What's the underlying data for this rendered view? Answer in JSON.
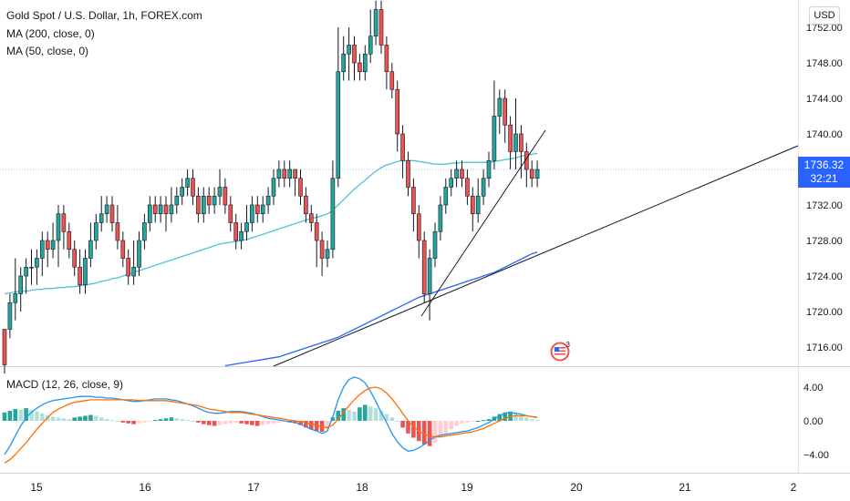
{
  "title": "Gold Spot / U.S. Dollar, 1h, FOREX.com",
  "indicators": [
    "MA (200, close, 0)",
    "MA (50, close, 0)"
  ],
  "currency": "USD",
  "last_price": "1736.32",
  "countdown": "32:21",
  "event_count": "3",
  "macd_label": "MACD (12, 26, close, 9)",
  "colors": {
    "up": "#26a69a",
    "down": "#ef5350",
    "ma50": "#4dc3d8",
    "ma200": "#2962ff",
    "macd": "#2196f3",
    "signal": "#ff6d00",
    "hist_up_strong": "#26a69a",
    "hist_up_weak": "#b2dfdb",
    "hist_down_strong": "#ef5350",
    "hist_down_weak": "#ffcdd2",
    "price_tag": "#2962ff"
  },
  "chart_data": [
    {
      "type": "candlestick",
      "title": "Gold Spot / U.S. Dollar, 1h, FOREX.com",
      "y_ticks": [
        "1716.00",
        "1720.00",
        "1724.00",
        "1728.00",
        "1732.00",
        "1736.00",
        "1740.00",
        "1744.00",
        "1748.00",
        "1752.00"
      ],
      "x_ticks": [
        "15",
        "16",
        "17",
        "18",
        "19",
        "20",
        "21",
        "2"
      ],
      "ylim": [
        1714.0,
        1755.0
      ],
      "candles": [
        [
          1718,
          1714,
          1718,
          1713
        ],
        [
          1718,
          1721,
          1722,
          1717
        ],
        [
          1721,
          1722,
          1726,
          1719
        ],
        [
          1722,
          1724,
          1725,
          1720
        ],
        [
          1724,
          1725,
          1726,
          1722
        ],
        [
          1725,
          1725,
          1727,
          1723
        ],
        [
          1725,
          1726,
          1727,
          1723
        ],
        [
          1726,
          1728,
          1729,
          1724
        ],
        [
          1728,
          1727,
          1729,
          1725
        ],
        [
          1727,
          1728,
          1730,
          1726
        ],
        [
          1728,
          1731,
          1732,
          1725
        ],
        [
          1731,
          1729,
          1732,
          1727
        ],
        [
          1729,
          1727,
          1730,
          1726
        ],
        [
          1727,
          1725,
          1728,
          1724
        ],
        [
          1725,
          1723,
          1727,
          1722
        ],
        [
          1723,
          1726,
          1727,
          1722
        ],
        [
          1726,
          1728,
          1730,
          1725
        ],
        [
          1728,
          1730,
          1731,
          1727
        ],
        [
          1730,
          1731,
          1733,
          1729
        ],
        [
          1731,
          1732,
          1733,
          1730
        ],
        [
          1732,
          1730,
          1733,
          1729
        ],
        [
          1730,
          1728,
          1732,
          1727
        ],
        [
          1728,
          1726,
          1729,
          1725
        ],
        [
          1726,
          1724,
          1727,
          1723
        ],
        [
          1724,
          1725,
          1728,
          1723
        ],
        [
          1725,
          1728,
          1729,
          1724
        ],
        [
          1728,
          1730,
          1731,
          1727
        ],
        [
          1730,
          1732,
          1733,
          1729
        ],
        [
          1732,
          1731,
          1733,
          1730
        ],
        [
          1731,
          1732,
          1733,
          1730
        ],
        [
          1732,
          1731,
          1733,
          1729
        ],
        [
          1731,
          1732,
          1734,
          1730
        ],
        [
          1732,
          1733,
          1734,
          1731
        ],
        [
          1733,
          1734,
          1735,
          1732
        ],
        [
          1734,
          1735,
          1736,
          1733
        ],
        [
          1735,
          1733,
          1736,
          1732
        ],
        [
          1733,
          1731,
          1734,
          1730
        ],
        [
          1731,
          1733,
          1734,
          1730
        ],
        [
          1733,
          1732,
          1734,
          1731
        ],
        [
          1732,
          1733,
          1734,
          1731
        ],
        [
          1733,
          1734,
          1736,
          1732
        ],
        [
          1734,
          1732,
          1735,
          1731
        ],
        [
          1732,
          1730,
          1733,
          1729
        ],
        [
          1730,
          1728,
          1731,
          1727
        ],
        [
          1728,
          1729,
          1730,
          1727
        ],
        [
          1729,
          1730,
          1732,
          1728
        ],
        [
          1730,
          1732,
          1733,
          1729
        ],
        [
          1732,
          1731,
          1733,
          1730
        ],
        [
          1731,
          1732,
          1733,
          1730
        ],
        [
          1732,
          1733,
          1734,
          1731
        ],
        [
          1733,
          1735,
          1736,
          1732
        ],
        [
          1735,
          1736,
          1737,
          1734
        ],
        [
          1736,
          1735,
          1737,
          1734
        ],
        [
          1735,
          1736,
          1737,
          1734
        ],
        [
          1736,
          1735,
          1736,
          1733
        ],
        [
          1735,
          1733,
          1736,
          1732
        ],
        [
          1733,
          1731,
          1734,
          1730
        ],
        [
          1731,
          1730,
          1732,
          1729
        ],
        [
          1730,
          1728,
          1731,
          1725
        ],
        [
          1728,
          1726,
          1729,
          1724
        ],
        [
          1726,
          1727,
          1728,
          1725
        ],
        [
          1727,
          1735,
          1737,
          1726
        ],
        [
          1735,
          1747,
          1752,
          1734
        ],
        [
          1747,
          1749,
          1751,
          1746
        ],
        [
          1749,
          1750,
          1752,
          1746
        ],
        [
          1750,
          1748,
          1751,
          1746
        ],
        [
          1748,
          1747,
          1749,
          1746
        ],
        [
          1747,
          1749,
          1750,
          1746
        ],
        [
          1749,
          1751,
          1754,
          1748
        ],
        [
          1751,
          1754,
          1755,
          1750
        ],
        [
          1754,
          1750,
          1755,
          1749
        ],
        [
          1750,
          1747,
          1751,
          1745
        ],
        [
          1747,
          1745,
          1748,
          1744
        ],
        [
          1745,
          1740,
          1746,
          1738
        ],
        [
          1740,
          1737,
          1741,
          1735
        ],
        [
          1737,
          1734,
          1738,
          1733
        ],
        [
          1734,
          1731,
          1735,
          1729
        ],
        [
          1731,
          1728,
          1732,
          1726
        ],
        [
          1728,
          1722,
          1729,
          1721
        ],
        [
          1722,
          1726,
          1727,
          1719
        ],
        [
          1726,
          1729,
          1730,
          1725
        ],
        [
          1729,
          1732,
          1733,
          1728
        ],
        [
          1732,
          1734,
          1735,
          1731
        ],
        [
          1734,
          1735,
          1736,
          1733
        ],
        [
          1735,
          1736,
          1737,
          1734
        ],
        [
          1736,
          1735,
          1737,
          1734
        ],
        [
          1735,
          1733,
          1736,
          1732
        ],
        [
          1733,
          1731,
          1734,
          1729
        ],
        [
          1731,
          1733,
          1735,
          1730
        ],
        [
          1733,
          1735,
          1736,
          1732
        ],
        [
          1735,
          1737,
          1738,
          1734
        ],
        [
          1737,
          1742,
          1746,
          1736
        ],
        [
          1742,
          1744,
          1745,
          1740
        ],
        [
          1744,
          1741,
          1745,
          1739
        ],
        [
          1741,
          1738,
          1742,
          1736
        ],
        [
          1738,
          1740,
          1744,
          1736
        ],
        [
          1740,
          1738,
          1741,
          1735
        ],
        [
          1738,
          1736,
          1739,
          1734
        ],
        [
          1736,
          1735,
          1737,
          1734
        ],
        [
          1735,
          1736,
          1737,
          1734
        ]
      ],
      "series": [
        {
          "name": "MA (50, close, 0)",
          "values": [
            1722.0,
            1722.1,
            1722.2,
            1722.3,
            1722.3,
            1722.4,
            1722.5,
            1722.5,
            1722.6,
            1722.6,
            1722.7,
            1722.7,
            1722.8,
            1722.8,
            1722.9,
            1723.0,
            1723.1,
            1723.2,
            1723.4,
            1723.5,
            1723.7,
            1723.8,
            1724.0,
            1724.2,
            1724.4,
            1724.6,
            1724.8,
            1725.0,
            1725.2,
            1725.4,
            1725.6,
            1725.8,
            1726.0,
            1726.2,
            1726.4,
            1726.6,
            1726.8,
            1727.0,
            1727.2,
            1727.4,
            1727.6,
            1727.7,
            1727.8,
            1727.9,
            1728.0,
            1728.1,
            1728.3,
            1728.5,
            1728.7,
            1728.9,
            1729.1,
            1729.3,
            1729.5,
            1729.7,
            1729.9,
            1730.1,
            1730.3,
            1730.5,
            1730.6,
            1730.8,
            1731.0,
            1731.4,
            1732.0,
            1732.6,
            1733.2,
            1733.8,
            1734.3,
            1734.8,
            1735.3,
            1735.8,
            1736.2,
            1736.5,
            1736.7,
            1736.9,
            1737.0,
            1737.0,
            1737.0,
            1736.9,
            1736.8,
            1736.7,
            1736.6,
            1736.6,
            1736.6,
            1736.7,
            1736.7,
            1736.8,
            1736.8,
            1736.8,
            1736.8,
            1736.8,
            1736.8,
            1736.9,
            1737.0,
            1737.1,
            1737.2,
            1737.3,
            1737.5,
            1737.6,
            1737.7,
            1737.8
          ]
        },
        {
          "name": "MA (200, close, 0)",
          "values": [
            null,
            null,
            null,
            null,
            null,
            null,
            null,
            null,
            null,
            null,
            null,
            null,
            null,
            null,
            null,
            null,
            null,
            null,
            null,
            null,
            null,
            null,
            null,
            null,
            null,
            null,
            null,
            null,
            null,
            null,
            null,
            null,
            null,
            null,
            null,
            null,
            null,
            null,
            null,
            null,
            null,
            1713.9,
            1714.0,
            1714.1,
            1714.2,
            1714.3,
            1714.4,
            1714.5,
            1714.6,
            1714.7,
            1714.8,
            1714.9,
            1715.1,
            1715.3,
            1715.5,
            1715.7,
            1715.9,
            1716.1,
            1716.3,
            1716.5,
            1716.7,
            1716.9,
            1717.1,
            1717.4,
            1717.7,
            1718.0,
            1718.3,
            1718.6,
            1718.9,
            1719.2,
            1719.5,
            1719.8,
            1720.1,
            1720.4,
            1720.7,
            1721.0,
            1721.3,
            1721.6,
            1721.8,
            1722.0,
            1722.2,
            1722.4,
            1722.6,
            1722.8,
            1723.0,
            1723.2,
            1723.4,
            1723.6,
            1723.8,
            1724.0,
            1724.2,
            1724.4,
            1724.7,
            1725.0,
            1725.3,
            1725.6,
            1725.9,
            1726.2,
            1726.5,
            1726.7
          ]
        }
      ]
    },
    {
      "type": "bar+line",
      "title": "MACD (12, 26, close, 9)",
      "y_ticks": [
        "−4.00",
        "0.00",
        "4.00"
      ],
      "ylim": [
        -6.0,
        5.5
      ],
      "histogram": [
        1.0,
        1.2,
        1.4,
        1.3,
        1.5,
        1.3,
        1.1,
        0.9,
        0.7,
        0.5,
        0.4,
        0.3,
        0.2,
        0.4,
        0.5,
        0.6,
        0.7,
        0.6,
        0.4,
        0.2,
        0.1,
        0.0,
        -0.2,
        -0.3,
        -0.4,
        -0.3,
        -0.2,
        -0.1,
        0.1,
        0.2,
        0.3,
        0.4,
        0.3,
        0.2,
        0.1,
        0.0,
        -0.2,
        -0.4,
        -0.5,
        -0.6,
        -0.5,
        -0.4,
        -0.3,
        -0.2,
        -0.3,
        -0.4,
        -0.5,
        -0.6,
        -0.5,
        -0.4,
        -0.3,
        -0.2,
        -0.1,
        -0.2,
        -0.3,
        -0.5,
        -0.8,
        -1.0,
        -1.2,
        -1.3,
        -1.0,
        0.4,
        1.2,
        1.5,
        1.3,
        1.1,
        1.6,
        1.9,
        1.7,
        1.5,
        1.2,
        0.8,
        0.4,
        0.0,
        -0.8,
        -1.5,
        -2.0,
        -2.4,
        -2.8,
        -3.0,
        -2.6,
        -2.0,
        -1.5,
        -1.0,
        -0.6,
        -0.3,
        -0.2,
        -0.1,
        0.0,
        0.1,
        0.2,
        0.5,
        0.8,
        1.0,
        1.1,
        0.9,
        0.6,
        0.4,
        0.2,
        0.1
      ],
      "series": [
        {
          "name": "MACD",
          "values": [
            -4.0,
            -3.0,
            -1.8,
            -0.6,
            0.4,
            1.0,
            1.5,
            1.9,
            2.2,
            2.4,
            2.5,
            2.6,
            2.7,
            2.8,
            2.9,
            2.9,
            2.9,
            2.8,
            2.8,
            2.7,
            2.7,
            2.6,
            2.5,
            2.4,
            2.3,
            2.3,
            2.4,
            2.5,
            2.6,
            2.6,
            2.6,
            2.5,
            2.4,
            2.2,
            2.0,
            1.8,
            1.5,
            1.2,
            1.0,
            0.9,
            0.9,
            1.0,
            1.1,
            1.1,
            1.1,
            1.0,
            0.9,
            0.7,
            0.5,
            0.3,
            0.2,
            0.1,
            0.0,
            -0.1,
            -0.2,
            -0.4,
            -0.7,
            -1.0,
            -1.2,
            -1.5,
            -1.2,
            0.5,
            2.5,
            4.0,
            4.9,
            5.2,
            5.0,
            4.5,
            3.5,
            2.3,
            1.0,
            -0.2,
            -1.5,
            -2.5,
            -3.2,
            -3.6,
            -3.5,
            -3.2,
            -2.8,
            -2.3,
            -1.9,
            -1.7,
            -1.6,
            -1.5,
            -1.4,
            -1.3,
            -1.2,
            -1.0,
            -0.8,
            -0.5,
            -0.2,
            0.2,
            0.6,
            0.9,
            1.0,
            0.9,
            0.8,
            0.6,
            0.5,
            0.4
          ]
        },
        {
          "name": "Signal",
          "values": [
            -5.0,
            -4.6,
            -4.0,
            -3.3,
            -2.6,
            -1.8,
            -1.0,
            -0.3,
            0.4,
            1.0,
            1.4,
            1.7,
            2.0,
            2.2,
            2.3,
            2.4,
            2.5,
            2.5,
            2.5,
            2.5,
            2.5,
            2.5,
            2.5,
            2.5,
            2.5,
            2.4,
            2.4,
            2.4,
            2.4,
            2.4,
            2.4,
            2.3,
            2.2,
            2.1,
            2.0,
            1.9,
            1.8,
            1.6,
            1.4,
            1.3,
            1.2,
            1.1,
            1.0,
            1.0,
            1.0,
            0.9,
            0.8,
            0.7,
            0.6,
            0.5,
            0.4,
            0.3,
            0.2,
            0.1,
            0.0,
            -0.1,
            -0.2,
            -0.4,
            -0.5,
            -0.7,
            -0.8,
            -0.5,
            0.2,
            1.0,
            1.8,
            2.5,
            3.1,
            3.6,
            3.9,
            4.0,
            3.8,
            3.3,
            2.6,
            1.8,
            0.9,
            0.0,
            -0.7,
            -1.2,
            -1.6,
            -1.8,
            -1.9,
            -1.9,
            -1.8,
            -1.7,
            -1.6,
            -1.5,
            -1.4,
            -1.3,
            -1.1,
            -0.9,
            -0.6,
            -0.3,
            0.0,
            0.3,
            0.5,
            0.6,
            0.6,
            0.6,
            0.5,
            0.4
          ]
        }
      ]
    }
  ]
}
